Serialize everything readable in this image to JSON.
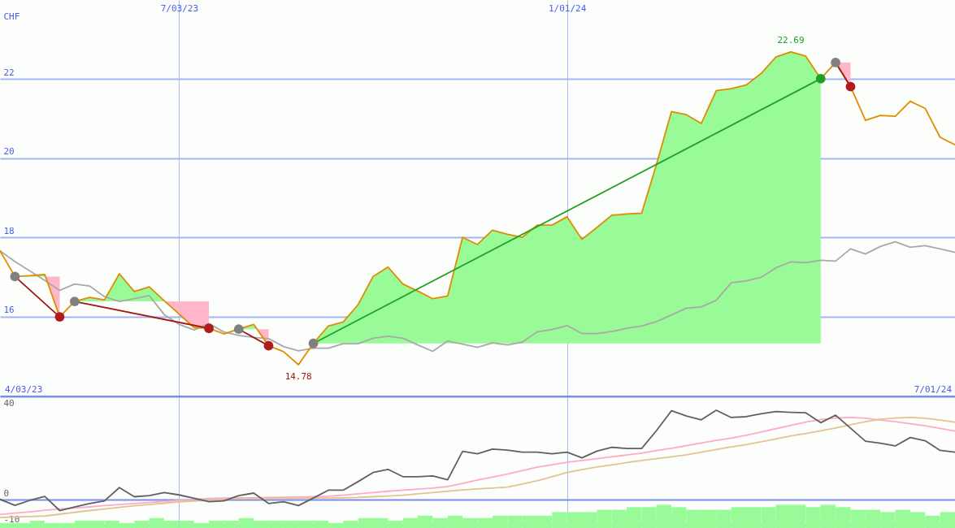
{
  "chart_data": [
    {
      "type": "line",
      "ylabel": "CHF",
      "x": [
        "2023-04-10",
        "2023-04-17",
        "2023-04-24",
        "2023-05-01",
        "2023-05-08",
        "2023-05-15",
        "2023-05-22",
        "2023-05-29",
        "2023-06-05",
        "2023-06-12",
        "2023-06-19",
        "2023-06-26",
        "2023-07-03",
        "2023-07-10",
        "2023-07-17",
        "2023-07-24",
        "2023-07-31",
        "2023-08-07",
        "2023-08-14",
        "2023-08-21",
        "2023-08-28",
        "2023-09-04",
        "2023-09-11",
        "2023-09-18",
        "2023-09-25",
        "2023-10-02",
        "2023-10-09",
        "2023-10-16",
        "2023-10-23",
        "2023-10-30",
        "2023-11-06",
        "2023-11-13",
        "2023-11-20",
        "2023-11-27",
        "2023-12-04",
        "2023-12-11",
        "2023-12-18",
        "2023-12-25",
        "2024-01-01",
        "2024-01-08",
        "2024-01-15",
        "2024-01-22",
        "2024-01-29",
        "2024-02-05",
        "2024-02-12",
        "2024-02-19",
        "2024-02-26",
        "2024-03-04",
        "2024-03-11",
        "2024-03-18",
        "2024-03-25",
        "2024-04-01",
        "2024-04-08",
        "2024-04-15",
        "2024-04-22",
        "2024-04-29",
        "2024-05-06",
        "2024-05-13",
        "2024-05-20",
        "2024-05-27",
        "2024-06-03",
        "2024-06-10",
        "2024-06-17",
        "2024-06-24",
        "2024-07-01"
      ],
      "xlim": [
        "2023-04-10",
        "2024-07-01"
      ],
      "xticks": [
        {
          "value": "2023-07-03",
          "label": "7/03/23"
        },
        {
          "value": "2024-01-01",
          "label": "1/01/24"
        }
      ],
      "ylim": [
        14,
        24
      ],
      "yticks": [
        16,
        18,
        20,
        22
      ],
      "grid": true,
      "annotations": [
        "4/03/23",
        "7/01/24",
        {
          "text": "22.69",
          "x": "2024-04-15",
          "y": 22.69
        },
        {
          "text": "14.78",
          "x": "2023-08-28",
          "y": 14.78
        }
      ],
      "series": [
        {
          "type": "scatter",
          "color": "#808080",
          "x": [
            "2023-04-17",
            "2023-05-15",
            "2023-07-31",
            "2023-09-04",
            "2024-05-06"
          ],
          "values": [
            17.01,
            16.38,
            15.68,
            15.32,
            22.42
          ]
        },
        {
          "type": "scatter",
          "color": "#b01c1c",
          "x": [
            "2023-05-08",
            "2023-07-17",
            "2023-08-14",
            "2024-05-13"
          ],
          "values": [
            15.99,
            15.7,
            15.26,
            21.81
          ]
        },
        {
          "type": "scatter",
          "color": "#22a022",
          "x": [
            "2024-04-29"
          ],
          "values": [
            22.01
          ]
        },
        {
          "color": "#a9a9a9",
          "values": [
            17.66,
            17.39,
            17.15,
            16.91,
            16.66,
            16.82,
            16.77,
            16.5,
            16.38,
            16.45,
            16.53,
            16.05,
            15.8,
            15.66,
            15.82,
            15.61,
            15.52,
            15.47,
            15.44,
            15.24,
            15.13,
            15.2,
            15.2,
            15.31,
            15.31,
            15.45,
            15.5,
            15.45,
            15.28,
            15.12,
            15.38,
            15.3,
            15.22,
            15.33,
            15.28,
            15.35,
            15.61,
            15.67,
            15.77,
            15.57,
            15.57,
            15.62,
            15.7,
            15.76,
            15.87,
            16.04,
            16.21,
            16.24,
            16.41,
            16.85,
            16.9,
            16.99,
            17.23,
            17.38,
            17.36,
            17.42,
            17.4,
            17.71,
            17.58,
            17.77,
            17.89,
            17.75,
            17.79,
            17.71,
            17.62
          ]
        },
        {
          "color": "#e08c00",
          "values": [
            17.66,
            17.01,
            17.03,
            17.06,
            15.99,
            16.38,
            16.48,
            16.42,
            17.08,
            16.63,
            16.75,
            16.4,
            16.06,
            15.72,
            15.7,
            15.56,
            15.68,
            15.8,
            15.26,
            15.11,
            14.78,
            15.32,
            15.76,
            15.86,
            16.3,
            17.01,
            17.25,
            16.82,
            16.64,
            16.45,
            16.52,
            18.0,
            17.82,
            18.18,
            18.08,
            18.0,
            18.31,
            18.31,
            18.52,
            17.95,
            18.25,
            18.56,
            18.59,
            18.61,
            19.85,
            21.18,
            21.1,
            20.88,
            21.71,
            21.76,
            21.85,
            22.14,
            22.56,
            22.69,
            22.58,
            22.01,
            22.42,
            21.81,
            20.96,
            21.08,
            21.06,
            21.44,
            21.26,
            20.53,
            20.34
          ]
        },
        {
          "color": "#a01818",
          "x": [
            "2023-04-17",
            "2023-05-08"
          ],
          "values": [
            17.01,
            15.99
          ]
        },
        {
          "color": "#a01818",
          "x": [
            "2023-05-15",
            "2023-07-17"
          ],
          "values": [
            16.38,
            15.7
          ]
        },
        {
          "color": "#a01818",
          "x": [
            "2023-07-31",
            "2023-08-14"
          ],
          "values": [
            15.68,
            15.26
          ]
        },
        {
          "color": "#22a022",
          "x": [
            "2023-09-04",
            "2024-04-29"
          ],
          "values": [
            15.32,
            22.01
          ]
        },
        {
          "color": "#a01818",
          "x": [
            "2024-05-06",
            "2024-05-13"
          ],
          "values": [
            22.42,
            21.81
          ]
        },
        {
          "type": "area",
          "color": "#98fb98",
          "x": [
            "2023-04-17",
            "2023-04-24",
            "2023-05-01",
            "2023-05-01T08:00",
            "2023-05-08",
            "2023-05-15",
            "2023-05-22",
            "2023-05-29",
            "2023-06-05",
            "2023-06-12",
            "2023-06-19",
            "2023-06-26",
            "2023-06-26T10:00",
            "2023-07-17",
            "2023-07-31",
            "2023-08-07",
            "2023-08-08T13:00",
            "2023-08-21",
            "2023-09-04",
            "2023-09-11",
            "2023-09-18",
            "2023-09-25",
            "2023-10-02",
            "2023-10-09",
            "2023-10-16",
            "2023-10-23",
            "2023-10-30",
            "2023-11-06",
            "2023-11-13",
            "2023-11-20",
            "2023-11-27",
            "2023-12-04",
            "2023-12-11",
            "2023-12-18",
            "2023-12-25",
            "2024-01-01",
            "2024-01-08",
            "2024-01-15",
            "2024-01-22",
            "2024-01-29",
            "2024-02-05",
            "2024-02-12",
            "2024-02-19",
            "2024-02-26",
            "2024-03-04",
            "2024-03-11",
            "2024-03-18",
            "2024-03-25",
            "2024-04-01",
            "2024-04-08",
            "2024-04-15",
            "2024-04-22",
            "2024-04-29"
          ],
          "values": [
            null,
            null,
            null,
            null,
            null,
            null,
            null,
            null,
            null,
            null,
            null,
            null,
            null,
            null,
            null,
            null,
            null,
            null,
            null,
            null,
            null,
            null,
            null,
            null,
            null,
            null,
            null,
            null,
            null,
            null,
            null,
            null,
            null,
            null,
            null,
            null,
            null,
            null,
            null,
            null,
            null,
            null,
            null,
            null,
            null,
            null,
            null,
            null,
            null,
            null,
            null,
            null,
            null
          ],
          "lower": [
            17.01,
            17.01,
            17.01,
            17.01,
            null,
            16.38,
            16.38,
            16.38,
            16.38,
            16.38,
            16.38,
            16.38,
            16.38,
            null,
            15.68,
            15.68,
            15.68,
            null,
            15.32,
            15.32,
            15.32,
            15.32,
            15.32,
            15.32,
            15.32,
            15.32,
            15.32,
            15.32,
            15.32,
            15.32,
            15.32,
            15.32,
            15.32,
            15.32,
            15.32,
            15.32,
            15.32,
            15.32,
            15.32,
            15.32,
            15.32,
            15.32,
            15.32,
            15.32,
            15.32,
            15.32,
            15.32,
            15.32,
            15.32,
            15.32,
            15.32,
            15.32,
            15.32
          ],
          "upper": [
            17.01,
            17.03,
            17.06,
            17.01,
            null,
            16.38,
            16.48,
            16.42,
            17.08,
            16.63,
            16.75,
            16.4,
            16.38,
            null,
            15.68,
            15.8,
            15.68,
            null,
            15.32,
            15.76,
            15.86,
            16.3,
            17.01,
            17.25,
            16.82,
            16.64,
            16.45,
            16.52,
            18.0,
            17.82,
            18.18,
            18.08,
            18.0,
            18.31,
            18.31,
            18.52,
            17.95,
            18.25,
            18.56,
            18.59,
            18.61,
            19.85,
            21.18,
            21.1,
            20.88,
            21.71,
            21.76,
            21.85,
            22.14,
            22.56,
            22.69,
            22.58,
            22.01
          ]
        },
        {
          "type": "area",
          "color": "#ffb6c8",
          "x": [
            "2023-05-01T08:00",
            "2023-05-08",
            "2023-06-05",
            "2023-06-26T10:00",
            "2023-07-03",
            "2023-07-10",
            "2023-07-17",
            "2023-07-31",
            "2023-08-08T13:00",
            "2023-08-14",
            "2023-12-25",
            "2024-05-06",
            "2024-05-13"
          ],
          "values": [
            null,
            null,
            null,
            null,
            null,
            null,
            null,
            null,
            null,
            null,
            null,
            null,
            null
          ],
          "lower": [
            17.01,
            15.99,
            null,
            16.38,
            16.06,
            15.72,
            15.7,
            null,
            15.68,
            15.26,
            null,
            22.42,
            21.81
          ],
          "upper": [
            17.01,
            17.01,
            null,
            16.38,
            16.38,
            16.38,
            16.38,
            null,
            15.68,
            15.68,
            null,
            22.42,
            22.42
          ]
        }
      ]
    },
    {
      "type": "line",
      "x": [
        "2023-04-10",
        "2023-04-17",
        "2023-04-24",
        "2023-05-01",
        "2023-05-08",
        "2023-05-15",
        "2023-05-22",
        "2023-05-29",
        "2023-06-05",
        "2023-06-12",
        "2023-06-19",
        "2023-06-26",
        "2023-07-03",
        "2023-07-10",
        "2023-07-17",
        "2023-07-24",
        "2023-07-31",
        "2023-08-07",
        "2023-08-14",
        "2023-08-21",
        "2023-08-28",
        "2023-09-04",
        "2023-09-11",
        "2023-09-18",
        "2023-09-25",
        "2023-10-02",
        "2023-10-09",
        "2023-10-16",
        "2023-10-23",
        "2023-10-30",
        "2023-11-06",
        "2023-11-13",
        "2023-11-20",
        "2023-11-27",
        "2023-12-04",
        "2023-12-11",
        "2023-12-18",
        "2023-12-25",
        "2024-01-01",
        "2024-01-08",
        "2024-01-15",
        "2024-01-22",
        "2024-01-29",
        "2024-02-05",
        "2024-02-12",
        "2024-02-19",
        "2024-02-26",
        "2024-03-04",
        "2024-03-11",
        "2024-03-18",
        "2024-03-25",
        "2024-04-01",
        "2024-04-08",
        "2024-04-15",
        "2024-04-22",
        "2024-04-29",
        "2024-05-06",
        "2024-05-13",
        "2024-05-20",
        "2024-05-27",
        "2024-06-03",
        "2024-06-10",
        "2024-06-17",
        "2024-06-24",
        "2024-07-01"
      ],
      "xlim": [
        "2023-04-10",
        "2024-07-01"
      ],
      "xticks": [
        {
          "value": "2023-07-03",
          "label": null
        },
        {
          "value": "2024-01-01",
          "label": null
        }
      ],
      "ylim": [
        -10.8,
        40
      ],
      "yticks": [
        -10,
        0,
        40
      ],
      "grid": true,
      "tick_labels": "y",
      "series": [
        {
          "type": "bar",
          "color": "#98fb98",
          "x": [
            "2023-04-13T12:00",
            "2023-04-20T12:00",
            "2023-04-27T12:00",
            "2023-05-04T12:00",
            "2023-05-11T12:00",
            "2023-05-18T12:00",
            "2023-05-25T12:00",
            "2023-06-01T12:00",
            "2023-06-08T12:00",
            "2023-06-15T12:00",
            "2023-06-22T12:00",
            "2023-06-29T12:00",
            "2023-07-06T12:00",
            "2023-07-13T12:00",
            "2023-07-20T12:00",
            "2023-07-27T12:00",
            "2023-08-03T12:00",
            "2023-08-10T12:00",
            "2023-08-17T12:00",
            "2023-08-24T12:00",
            "2023-08-31T12:00",
            "2023-09-07T12:00",
            "2023-09-14T12:00",
            "2023-09-21T12:00",
            "2023-09-28T12:00",
            "2023-10-05T12:00",
            "2023-10-12T12:00",
            "2023-10-19T12:00",
            "2023-10-26T12:00",
            "2023-11-02T12:00",
            "2023-11-09T12:00",
            "2023-11-16T12:00",
            "2023-11-23T12:00",
            "2023-11-30T12:00",
            "2023-12-07T12:00",
            "2023-12-14T12:00",
            "2023-12-21T12:00",
            "2023-12-28T12:00",
            "2024-01-04T12:00",
            "2024-01-11T12:00",
            "2024-01-18T12:00",
            "2024-01-25T12:00",
            "2024-02-01T12:00",
            "2024-02-08T12:00",
            "2024-02-15T12:00",
            "2024-02-22T12:00",
            "2024-02-29T12:00",
            "2024-03-07T12:00",
            "2024-03-14T12:00",
            "2024-03-21T12:00",
            "2024-03-28T12:00",
            "2024-04-04T12:00",
            "2024-04-11T12:00",
            "2024-04-18T12:00",
            "2024-04-25T12:00",
            "2024-05-02T12:00",
            "2024-05-09T12:00",
            "2024-05-16T12:00",
            "2024-05-23T12:00",
            "2024-05-30T12:00",
            "2024-06-06T12:00",
            "2024-06-13T12:00",
            "2024-06-20T12:00",
            "2024-06-27T12:00"
          ],
          "base": [
            -10.8,
            -10.8,
            -10.8,
            -10.8,
            -10.8,
            -10.8,
            -10.8,
            -10.8,
            -10.8,
            -10.8,
            -10.8,
            -10.8,
            -10.8,
            -10.8,
            -10.8,
            -10.8,
            -10.8,
            -10.8,
            -10.8,
            -10.8,
            -10.8,
            -10.8,
            -10.8,
            -10.8,
            -10.8,
            -10.8,
            -10.8,
            -10.8,
            -10.8,
            -10.8,
            -10.8,
            -10.8,
            -10.8,
            -10.8,
            -10.8,
            -10.8,
            -10.8,
            -10.8,
            -10.8,
            -10.8,
            -10.8,
            -10.8,
            -10.8,
            -10.8,
            -10.8,
            -10.8,
            -10.8,
            -10.8,
            -10.8,
            -10.8,
            -10.8,
            -10.8,
            -10.8,
            -10.8,
            -10.8,
            -10.8,
            -10.8,
            -10.8,
            -10.8,
            -10.8,
            -10.8,
            -10.8,
            -10.8,
            -10.8
          ],
          "values": [
            1.9,
            1.9,
            2.8,
            1.9,
            1.9,
            2.8,
            2.8,
            2.8,
            1.9,
            2.8,
            3.8,
            2.8,
            2.8,
            1.9,
            2.8,
            2.8,
            3.8,
            2.8,
            2.8,
            2.8,
            2.8,
            2.8,
            1.9,
            2.8,
            3.8,
            3.8,
            2.8,
            3.8,
            4.7,
            3.8,
            4.7,
            3.8,
            3.8,
            4.7,
            4.7,
            4.7,
            4.7,
            6.1,
            6.1,
            6.1,
            7.0,
            7.0,
            8.0,
            8.0,
            8.9,
            8.0,
            7.0,
            7.0,
            7.0,
            8.0,
            8.0,
            8.0,
            8.9,
            8.9,
            8.0,
            8.9,
            8.0,
            7.0,
            7.0,
            6.1,
            7.0,
            6.1,
            4.7,
            6.1
          ]
        },
        {
          "color": "#ffaac8",
          "values": [
            -5.6,
            -5.1,
            -4.6,
            -4.0,
            -3.5,
            -3.1,
            -2.7,
            -2.2,
            -1.8,
            -1.4,
            -1.0,
            -0.6,
            -0.2,
            0.2,
            0.5,
            0.7,
            0.8,
            0.8,
            0.9,
            1.0,
            1.1,
            1.2,
            1.4,
            1.8,
            2.3,
            2.8,
            3.3,
            3.7,
            4.1,
            4.5,
            5.1,
            6.3,
            7.6,
            8.7,
            9.9,
            11.2,
            12.5,
            13.5,
            14.4,
            15.1,
            15.8,
            16.5,
            17.2,
            17.9,
            18.9,
            19.8,
            20.8,
            21.8,
            22.8,
            23.7,
            24.8,
            26.0,
            27.3,
            28.6,
            29.8,
            30.8,
            31.4,
            31.6,
            31.3,
            30.6,
            30.0,
            29.2,
            28.4,
            27.4,
            26.4
          ]
        },
        {
          "color": "#e0c494",
          "values": [
            -6.8,
            -6.6,
            -6.4,
            -6.2,
            -5.5,
            -4.8,
            -4.1,
            -3.5,
            -2.9,
            -2.3,
            -1.8,
            -1.3,
            -0.8,
            -0.5,
            -0.2,
            0.2,
            0.5,
            0.5,
            0.5,
            0.6,
            0.6,
            0.7,
            0.7,
            0.8,
            0.9,
            1.2,
            1.5,
            1.8,
            2.3,
            2.8,
            3.3,
            3.8,
            4.2,
            4.5,
            4.9,
            6.1,
            7.3,
            8.9,
            10.5,
            11.6,
            12.6,
            13.4,
            14.3,
            15.1,
            15.8,
            16.5,
            17.3,
            18.3,
            19.3,
            20.3,
            21.2,
            22.3,
            23.4,
            24.5,
            25.5,
            26.5,
            27.6,
            28.8,
            30.0,
            30.9,
            31.4,
            31.6,
            31.3,
            30.6,
            29.8
          ]
        },
        {
          "color": "#606060",
          "values": [
            0.2,
            -2.1,
            -0.2,
            1.3,
            -4.1,
            -2.7,
            -1.4,
            -0.4,
            4.7,
            1.2,
            1.6,
            2.8,
            1.9,
            0.6,
            -0.7,
            -0.4,
            1.6,
            2.6,
            -1.4,
            -0.7,
            -2.2,
            0.7,
            3.7,
            3.7,
            7.0,
            10.5,
            11.7,
            8.9,
            8.9,
            9.2,
            7.7,
            18.6,
            17.7,
            19.5,
            19.1,
            18.3,
            18.3,
            17.7,
            18.3,
            16.1,
            18.7,
            20.2,
            19.7,
            19.7,
            26.6,
            34.2,
            32.2,
            30.7,
            34.4,
            31.6,
            31.9,
            33.0,
            33.9,
            33.6,
            33.4,
            29.6,
            32.5,
            27.5,
            22.5,
            21.7,
            20.7,
            23.9,
            22.7,
            19.0,
            18.3
          ]
        }
      ]
    }
  ]
}
